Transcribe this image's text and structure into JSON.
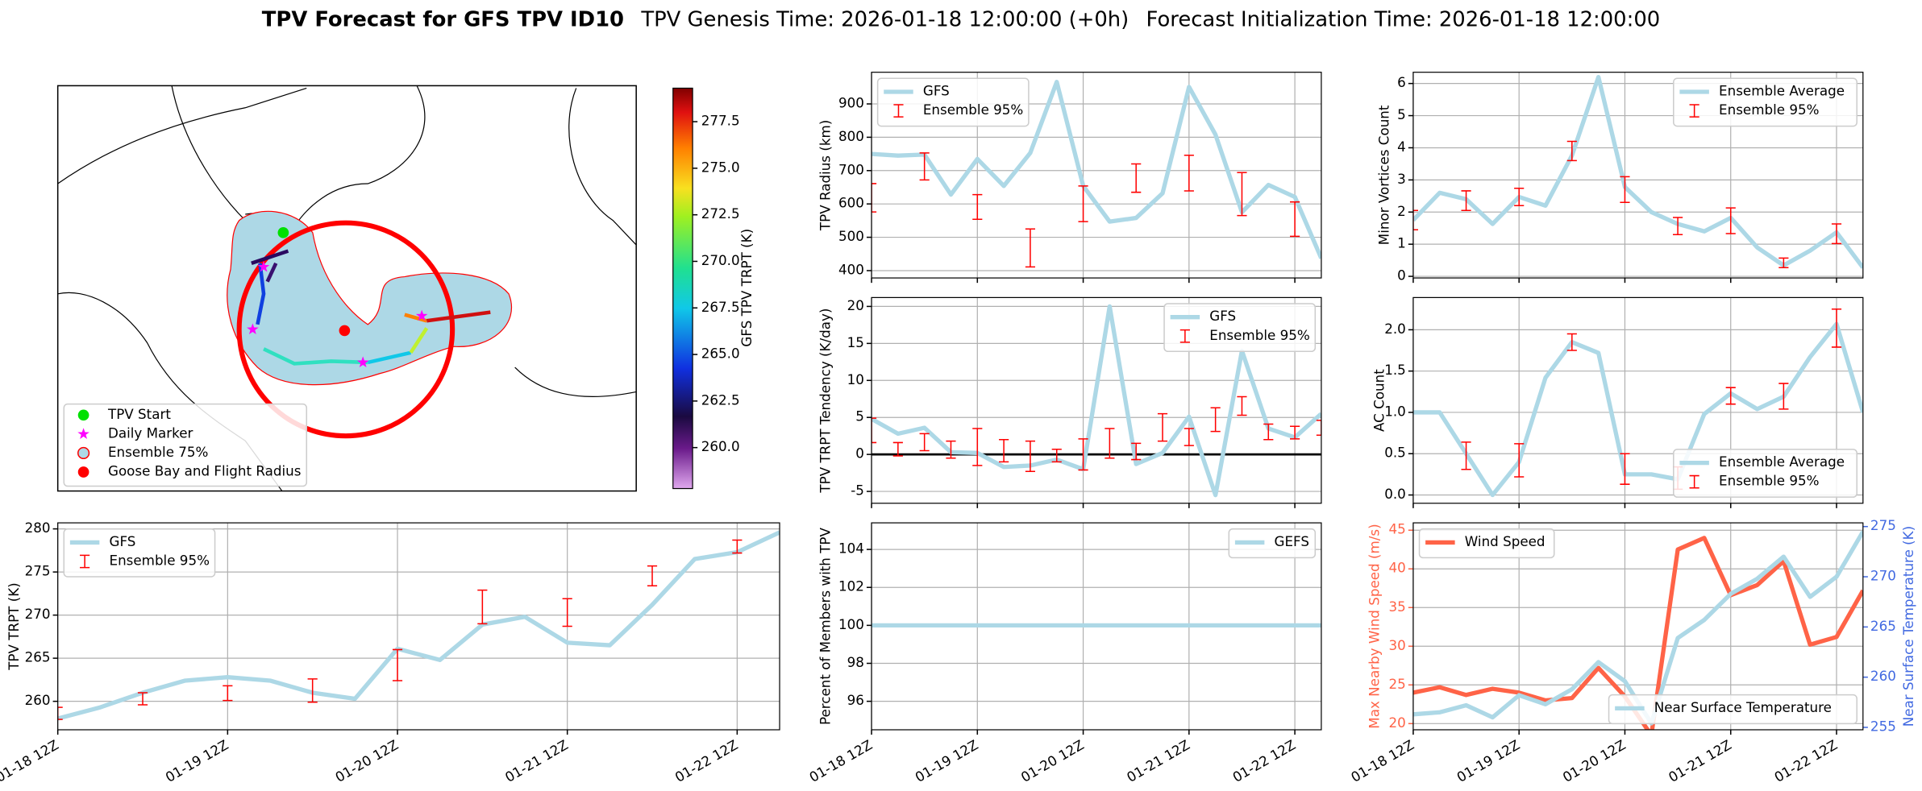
{
  "figure_title": "TPV Forecast for GFS TPV ID10",
  "figure_subtitles": [
    "TPV Genesis Time: 2026-01-18 12:00:00 (+0h)",
    "Forecast Initialization Time: 2026-01-18 12:00:00"
  ],
  "chart_data": [
    {
      "type": "map",
      "legend": [
        "TPV Start",
        "Daily Marker",
        "Ensemble 75%",
        "Goose Bay and Flight Radius"
      ],
      "colorbar_label": "GFS TPV TRPT (K)",
      "clim": [
        257.8,
        279.3
      ],
      "cticks": [
        {
          "value": 260,
          "label": "260.0"
        },
        262.5,
        {
          "value": 265,
          "label": "265.0"
        },
        267.5,
        {
          "value": 270,
          "label": "270.0"
        },
        272.5,
        {
          "value": 275,
          "label": "275.0"
        },
        277.5
      ]
    },
    {
      "type": "line",
      "ylabel": "TPV Radius (km)",
      "grid": true,
      "legend": "upper left",
      "x": [
        0,
        6,
        12,
        18,
        24,
        30,
        36,
        42,
        48,
        54,
        60,
        66,
        72,
        78,
        84,
        90,
        96,
        102
      ],
      "xlim": [
        0,
        102
      ],
      "xticks": [
        {
          "value": 0,
          "label": "01-18 12Z"
        },
        {
          "value": 24,
          "label": "01-19 12Z"
        },
        {
          "value": 48,
          "label": "01-20 12Z"
        },
        {
          "value": 72,
          "label": "01-21 12Z"
        },
        {
          "value": 96,
          "label": "01-22 12Z"
        }
      ],
      "ylim": [
        378,
        995
      ],
      "yticks": [
        400,
        500,
        600,
        700,
        800,
        900
      ],
      "series": [
        {
          "name": "GFS",
          "type": "line",
          "color": "#add8e6",
          "values": [
            750,
            745,
            748,
            628,
            735,
            654,
            753,
            966,
            654,
            547,
            558,
            632,
            951,
            808,
            575,
            657,
            621,
            437
          ]
        },
        {
          "name": "Ensemble 95%",
          "type": "errorbar",
          "color": "#ff0000",
          "low": [
            576,
            null,
            672,
            null,
            554,
            null,
            411,
            null,
            547,
            null,
            635,
            null,
            639,
            null,
            565,
            null,
            503,
            null
          ],
          "high": [
            661,
            null,
            753,
            null,
            628,
            null,
            525,
            null,
            654,
            null,
            720,
            null,
            746,
            null,
            694,
            null,
            606,
            null
          ]
        }
      ]
    },
    {
      "type": "line",
      "ylabel": "Minor Vortices Count",
      "grid": true,
      "legend": "upper right",
      "x": [
        0,
        6,
        12,
        18,
        24,
        30,
        36,
        42,
        48,
        54,
        60,
        66,
        72,
        78,
        84,
        90,
        96,
        102
      ],
      "xlim": [
        0,
        102
      ],
      "xticks": [
        {
          "value": 0,
          "label": "01-18 12Z"
        },
        {
          "value": 24,
          "label": "01-19 12Z"
        },
        {
          "value": 48,
          "label": "01-20 12Z"
        },
        {
          "value": 72,
          "label": "01-21 12Z"
        },
        {
          "value": 96,
          "label": "01-22 12Z"
        }
      ],
      "ylim": [
        -0.05,
        6.35
      ],
      "yticks": [
        0,
        1,
        2,
        3,
        4,
        5,
        6
      ],
      "series": [
        {
          "name": "Ensemble Average",
          "type": "line",
          "color": "#add8e6",
          "values": [
            1.75,
            2.6,
            2.4,
            1.63,
            2.47,
            2.2,
            3.76,
            6.2,
            2.78,
            2.0,
            1.63,
            1.4,
            1.82,
            0.9,
            0.34,
            0.8,
            1.37,
            0.27
          ]
        },
        {
          "name": "Ensemble 95%",
          "type": "errorbar",
          "color": "#ff0000",
          "low": [
            1.45,
            null,
            2.05,
            null,
            2.2,
            null,
            3.6,
            null,
            2.3,
            null,
            1.3,
            null,
            1.33,
            null,
            0.27,
            null,
            1.02,
            null
          ],
          "high": [
            2.05,
            null,
            2.66,
            null,
            2.74,
            null,
            4.2,
            null,
            3.1,
            null,
            1.83,
            null,
            2.13,
            null,
            0.57,
            null,
            1.63,
            null
          ]
        }
      ]
    },
    {
      "type": "line",
      "ylabel": "TPV TRPT Tendency (K/day)",
      "grid": true,
      "legend": "upper right",
      "reference_line": 0,
      "x": [
        0,
        6,
        12,
        18,
        24,
        30,
        36,
        42,
        48,
        54,
        60,
        66,
        72,
        78,
        84,
        90,
        96,
        102
      ],
      "xlim": [
        0,
        102
      ],
      "xticks": [
        {
          "value": 0,
          "label": "01-18 12Z"
        },
        {
          "value": 24,
          "label": "01-19 12Z"
        },
        {
          "value": 48,
          "label": "01-20 12Z"
        },
        {
          "value": 72,
          "label": "01-21 12Z"
        },
        {
          "value": 96,
          "label": "01-22 12Z"
        }
      ],
      "ylim": [
        -6.6,
        21.2
      ],
      "yticks": [
        -5,
        0,
        5,
        10,
        15,
        20
      ],
      "series": [
        {
          "name": "GFS",
          "type": "line",
          "color": "#add8e6",
          "values": [
            4.8,
            2.8,
            3.6,
            0.3,
            0.2,
            -1.7,
            -1.5,
            -0.7,
            -2.0,
            20,
            -1.3,
            0.2,
            5.1,
            -5.5,
            14,
            3.5,
            2.3,
            5.5
          ]
        },
        {
          "name": "Ensemble 95%",
          "type": "errorbar",
          "color": "#ff0000",
          "low": [
            1.6,
            -0.2,
            0.5,
            -0.5,
            -1.5,
            -1.0,
            -2.3,
            -1.0,
            -2.1,
            -0.5,
            -0.7,
            1.8,
            1.2,
            3.1,
            5.3,
            2.0,
            2.1,
            2.6
          ],
          "high": [
            4.9,
            1.6,
            2.8,
            1.8,
            3.5,
            2.0,
            1.8,
            0.7,
            2.1,
            3.5,
            1.5,
            5.5,
            3.5,
            6.3,
            7.8,
            4.1,
            3.8,
            4.6
          ]
        }
      ]
    },
    {
      "type": "line",
      "ylabel": "AC Count",
      "grid": true,
      "legend": "lower right",
      "x": [
        0,
        6,
        12,
        18,
        24,
        30,
        36,
        42,
        48,
        54,
        60,
        66,
        72,
        78,
        84,
        90,
        96,
        102
      ],
      "xlim": [
        0,
        102
      ],
      "xticks": [
        {
          "value": 0,
          "label": "01-18 12Z"
        },
        {
          "value": 24,
          "label": "01-19 12Z"
        },
        {
          "value": 48,
          "label": "01-20 12Z"
        },
        {
          "value": 72,
          "label": "01-21 12Z"
        },
        {
          "value": 96,
          "label": "01-22 12Z"
        }
      ],
      "ylim": [
        -0.1,
        2.39
      ],
      "yticks": [
        {
          "value": 0,
          "label": "0.0"
        },
        0.5,
        {
          "value": 1,
          "label": "1.0"
        },
        1.5,
        {
          "value": 2,
          "label": "2.0"
        }
      ],
      "series": [
        {
          "name": "Ensemble Average",
          "type": "line",
          "color": "#add8e6",
          "values": [
            1.0,
            1.0,
            0.5,
            0,
            0.4,
            1.42,
            1.85,
            1.72,
            0.25,
            0.25,
            0.19,
            0.98,
            1.23,
            1.04,
            1.19,
            1.67,
            2.07,
            1.0
          ]
        },
        {
          "name": "Ensemble 95%",
          "type": "errorbar",
          "color": "#ff0000",
          "low": [
            null,
            null,
            0.31,
            null,
            0.22,
            null,
            1.75,
            null,
            0.13,
            null,
            0.07,
            null,
            1.1,
            null,
            1.04,
            null,
            1.79,
            null
          ],
          "high": [
            null,
            null,
            0.64,
            null,
            0.62,
            null,
            1.95,
            null,
            0.5,
            null,
            0.34,
            null,
            1.3,
            null,
            1.35,
            null,
            2.25,
            null
          ]
        }
      ]
    },
    {
      "type": "line",
      "ylabel": "TPV TRPT (K)",
      "grid": true,
      "legend": "upper left",
      "x": [
        0,
        6,
        12,
        18,
        24,
        30,
        36,
        42,
        48,
        54,
        60,
        66,
        72,
        78,
        84,
        90,
        96,
        102
      ],
      "xlim": [
        0,
        102
      ],
      "xticks": [
        {
          "value": 0,
          "label": "01-18 12Z"
        },
        {
          "value": 24,
          "label": "01-19 12Z"
        },
        {
          "value": 48,
          "label": "01-20 12Z"
        },
        {
          "value": 72,
          "label": "01-21 12Z"
        },
        {
          "value": 96,
          "label": "01-22 12Z"
        }
      ],
      "ylim": [
        256.7,
        280.7
      ],
      "yticks": [
        260,
        265,
        270,
        275,
        280
      ],
      "series": [
        {
          "name": "GFS",
          "type": "line",
          "color": "#add8e6",
          "values": [
            258.0,
            259.3,
            261.0,
            262.4,
            262.8,
            262.4,
            261.0,
            260.3,
            266.1,
            264.8,
            268.9,
            269.8,
            266.8,
            266.5,
            271.2,
            276.5,
            277.3,
            279.6
          ]
        },
        {
          "name": "Ensemble 95%",
          "type": "errorbar",
          "color": "#ff0000",
          "low": [
            257.9,
            null,
            259.6,
            null,
            260.1,
            null,
            259.9,
            null,
            262.4,
            null,
            269.0,
            null,
            268.7,
            null,
            273.4,
            null,
            277.2,
            null
          ],
          "high": [
            259.3,
            null,
            261.0,
            null,
            261.8,
            null,
            262.6,
            null,
            266.0,
            null,
            272.9,
            null,
            271.9,
            null,
            275.7,
            null,
            278.7,
            null
          ]
        }
      ]
    },
    {
      "type": "line",
      "ylabel": "Percent of Members with TPV",
      "grid": true,
      "legend": "upper right",
      "x": [
        0,
        6,
        12,
        18,
        24,
        30,
        36,
        42,
        48,
        54,
        60,
        66,
        72,
        78,
        84,
        90,
        96,
        102
      ],
      "xlim": [
        0,
        102
      ],
      "xticks": [
        {
          "value": 0,
          "label": "01-18 12Z"
        },
        {
          "value": 24,
          "label": "01-19 12Z"
        },
        {
          "value": 48,
          "label": "01-20 12Z"
        },
        {
          "value": 72,
          "label": "01-21 12Z"
        },
        {
          "value": 96,
          "label": "01-22 12Z"
        }
      ],
      "ylim": [
        94.5,
        105.4
      ],
      "yticks": [
        96,
        98,
        100,
        102,
        104
      ],
      "series": [
        {
          "name": "GEFS",
          "type": "line",
          "color": "#add8e6",
          "values": [
            100,
            100,
            100,
            100,
            100,
            100,
            100,
            100,
            100,
            100,
            100,
            100,
            100,
            100,
            100,
            100,
            100,
            100
          ]
        }
      ]
    },
    {
      "type": "line",
      "ylabel": "Max Nearby Wind Speed (m/s)",
      "y2label": "Near Surface Temperature (K)",
      "y_axis_color": "#ff6347",
      "y2_axis_color": "#4169e1",
      "grid": true,
      "legend": "upper left",
      "x": [
        0,
        6,
        12,
        18,
        24,
        30,
        36,
        42,
        48,
        54,
        60,
        66,
        72,
        78,
        84,
        90,
        96,
        102
      ],
      "xlim": [
        0,
        102
      ],
      "xticks": [
        {
          "value": 0,
          "label": "01-18 12Z"
        },
        {
          "value": 24,
          "label": "01-19 12Z"
        },
        {
          "value": 48,
          "label": "01-20 12Z"
        },
        {
          "value": 72,
          "label": "01-21 12Z"
        },
        {
          "value": 96,
          "label": "01-22 12Z"
        }
      ],
      "ylim": [
        19.2,
        45.95
      ],
      "yticks": [
        20,
        25,
        30,
        35,
        40,
        45
      ],
      "y2lim": [
        254.76,
        275.37
      ],
      "y2ticks": [
        255,
        260,
        265,
        270,
        275
      ],
      "series": [
        {
          "name": "Wind Speed",
          "type": "line",
          "color": "#ff6347",
          "values": [
            24.0,
            24.7,
            23.7,
            24.5,
            24.0,
            23.0,
            23.3,
            27.2,
            23.5,
            18.5,
            42.5,
            44.0,
            36.6,
            37.9,
            41.0,
            30.2,
            31.2,
            37.2
          ]
        },
        {
          "name": "Near Surface Temperature",
          "type": "line",
          "axis": "y2",
          "legend": "lower right",
          "color": "#add8e6",
          "values": [
            256.3,
            256.5,
            257.2,
            256.0,
            258.2,
            257.3,
            258.8,
            261.5,
            259.6,
            255.4,
            263.9,
            265.7,
            268.3,
            269.8,
            272.0,
            268.0,
            270.0,
            274.5
          ]
        }
      ]
    }
  ]
}
